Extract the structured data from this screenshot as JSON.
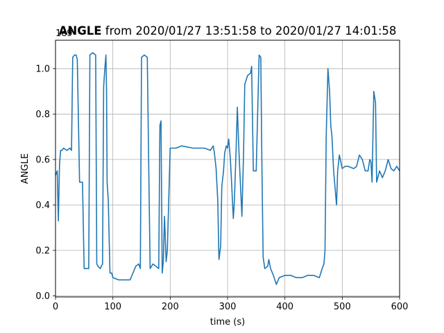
{
  "chart_data": {
    "type": "line",
    "title_bold": "ANGLE",
    "title_rest": " from 2020/01/27 13:51:58 to 2020/01/27 14:01:58",
    "xlabel": "time (s)",
    "ylabel": "ANGLE",
    "y_offset_label": "1e9",
    "xlim": [
      0,
      600
    ],
    "ylim": [
      -0.005,
      1.125
    ],
    "x_ticks": [
      0,
      100,
      200,
      300,
      400,
      500,
      600
    ],
    "x_tick_labels": [
      "0",
      "100",
      "200",
      "300",
      "400",
      "500",
      "600"
    ],
    "y_ticks": [
      0.0,
      0.2,
      0.4,
      0.6,
      0.8,
      1.0
    ],
    "y_tick_labels": [
      "0.0",
      "0.2",
      "0.4",
      "0.6",
      "0.8",
      "1.0"
    ],
    "grid": true,
    "series": [
      {
        "color": "#1f77b4",
        "x": [
          0,
          3,
          5,
          7,
          9,
          11,
          14,
          20,
          25,
          28,
          30,
          33,
          36,
          38,
          42,
          45,
          47,
          50,
          55,
          58,
          60,
          65,
          70,
          72,
          74,
          78,
          82,
          84,
          86,
          88,
          89,
          90,
          92,
          95,
          98,
          100,
          110,
          120,
          130,
          140,
          145,
          148,
          150,
          155,
          160,
          163,
          165,
          170,
          175,
          180,
          182,
          184,
          186,
          188,
          190,
          193,
          195,
          200,
          210,
          220,
          240,
          260,
          270,
          275,
          277,
          280,
          283,
          285,
          288,
          290,
          293,
          295,
          298,
          300,
          302,
          305,
          307,
          310,
          312,
          315,
          317,
          320,
          325,
          328,
          330,
          335,
          340,
          342,
          345,
          350,
          355,
          358,
          360,
          362,
          365,
          370,
          372,
          375,
          380,
          385,
          390,
          400,
          410,
          420,
          430,
          440,
          450,
          460,
          465,
          468,
          470,
          472,
          475,
          478,
          480,
          482,
          485,
          488,
          490,
          492,
          495,
          500,
          505,
          510,
          520,
          525,
          530,
          535,
          540,
          545,
          548,
          550,
          552,
          555,
          558,
          560,
          565,
          570,
          575,
          580,
          585,
          590,
          595,
          600
        ],
        "values": [
          0.53,
          0.55,
          0.33,
          0.58,
          0.64,
          0.64,
          0.65,
          0.64,
          0.65,
          0.64,
          1.05,
          1.06,
          1.06,
          1.04,
          0.5,
          0.5,
          0.5,
          0.12,
          0.12,
          0.12,
          1.06,
          1.07,
          1.06,
          0.14,
          0.13,
          0.12,
          0.14,
          0.92,
          1.0,
          1.06,
          0.9,
          0.5,
          0.42,
          0.1,
          0.1,
          0.08,
          0.07,
          0.07,
          0.07,
          0.13,
          0.14,
          0.12,
          1.05,
          1.06,
          1.05,
          0.5,
          0.12,
          0.14,
          0.13,
          0.12,
          0.75,
          0.77,
          0.1,
          0.15,
          0.35,
          0.15,
          0.2,
          0.65,
          0.65,
          0.66,
          0.65,
          0.65,
          0.64,
          0.66,
          0.63,
          0.56,
          0.42,
          0.16,
          0.22,
          0.48,
          0.55,
          0.63,
          0.66,
          0.65,
          0.69,
          0.6,
          0.5,
          0.34,
          0.42,
          0.65,
          0.83,
          0.63,
          0.35,
          0.63,
          0.93,
          0.97,
          0.98,
          1.01,
          0.55,
          0.55,
          1.06,
          1.05,
          0.55,
          0.17,
          0.12,
          0.13,
          0.16,
          0.12,
          0.09,
          0.05,
          0.08,
          0.09,
          0.09,
          0.08,
          0.08,
          0.09,
          0.09,
          0.08,
          0.12,
          0.14,
          0.2,
          0.7,
          1.0,
          0.9,
          0.75,
          0.7,
          0.55,
          0.46,
          0.4,
          0.55,
          0.62,
          0.56,
          0.57,
          0.57,
          0.56,
          0.57,
          0.62,
          0.6,
          0.55,
          0.55,
          0.6,
          0.59,
          0.5,
          0.9,
          0.85,
          0.5,
          0.55,
          0.52,
          0.55,
          0.6,
          0.56,
          0.55,
          0.57,
          0.55
        ]
      }
    ]
  }
}
